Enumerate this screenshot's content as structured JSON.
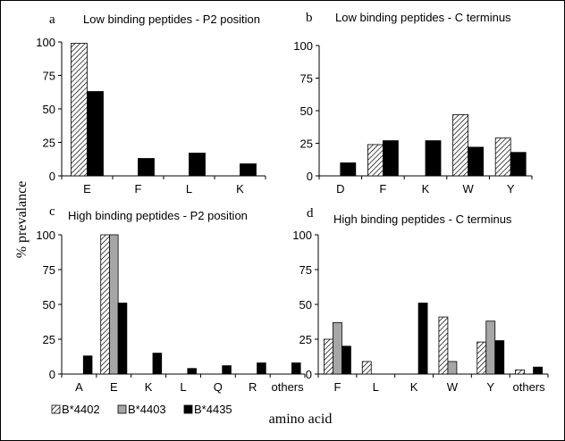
{
  "figure": {
    "ylabel": "% prevalance",
    "xlabel": "amino acid",
    "legend": [
      {
        "name": "B*4402",
        "pattern": "hatch"
      },
      {
        "name": "B*4403",
        "pattern": "gray"
      },
      {
        "name": "B*4435",
        "pattern": "black"
      }
    ],
    "colors": {
      "gray": "#a6a6a6",
      "black": "#000000",
      "hatch_line": "#000000"
    }
  },
  "chart_data": [
    {
      "type": "bar",
      "panel_letter": "a",
      "title": "Low binding peptides - P2 position",
      "categories": [
        "E",
        "F",
        "L",
        "K"
      ],
      "series": [
        {
          "name": "B*4402",
          "values": [
            99,
            0,
            0,
            0
          ]
        },
        {
          "name": "B*4435",
          "values": [
            63,
            13,
            17,
            9
          ]
        }
      ],
      "ylim": [
        0,
        100
      ],
      "yticks": [
        0,
        25,
        50,
        75,
        100
      ],
      "grid": false
    },
    {
      "type": "bar",
      "panel_letter": "b",
      "title": "Low binding peptides - C terminus",
      "categories": [
        "D",
        "F",
        "K",
        "W",
        "Y"
      ],
      "series": [
        {
          "name": "B*4402",
          "values": [
            0,
            24,
            0,
            47,
            29
          ]
        },
        {
          "name": "B*4435",
          "values": [
            10,
            27,
            27,
            22,
            18
          ]
        }
      ],
      "ylim": [
        0,
        100
      ],
      "yticks": [
        0,
        25,
        50,
        75,
        100
      ],
      "grid": false
    },
    {
      "type": "bar",
      "panel_letter": "c",
      "title": "High binding peptides - P2 position",
      "categories": [
        "A",
        "E",
        "K",
        "L",
        "Q",
        "R",
        "others"
      ],
      "series": [
        {
          "name": "B*4402",
          "values": [
            0,
            100,
            0,
            0,
            0,
            0,
            0
          ]
        },
        {
          "name": "B*4403",
          "values": [
            0,
            100,
            0,
            0,
            0,
            0,
            0
          ]
        },
        {
          "name": "B*4435",
          "values": [
            13,
            51,
            15,
            4,
            6,
            8,
            8
          ]
        }
      ],
      "ylim": [
        0,
        100
      ],
      "yticks": [
        0,
        25,
        50,
        75,
        100
      ],
      "grid": false
    },
    {
      "type": "bar",
      "panel_letter": "d",
      "title": "High binding peptides - C terminus",
      "categories": [
        "F",
        "L",
        "K",
        "W",
        "Y",
        "others"
      ],
      "series": [
        {
          "name": "B*4402",
          "values": [
            25,
            9,
            0,
            41,
            23,
            3
          ]
        },
        {
          "name": "B*4403",
          "values": [
            37,
            0,
            0,
            9,
            38,
            0
          ]
        },
        {
          "name": "B*4435",
          "values": [
            20,
            0,
            51,
            0,
            24,
            5
          ]
        }
      ],
      "ylim": [
        0,
        100
      ],
      "yticks": [
        0,
        25,
        50,
        75,
        100
      ],
      "grid": false
    }
  ]
}
